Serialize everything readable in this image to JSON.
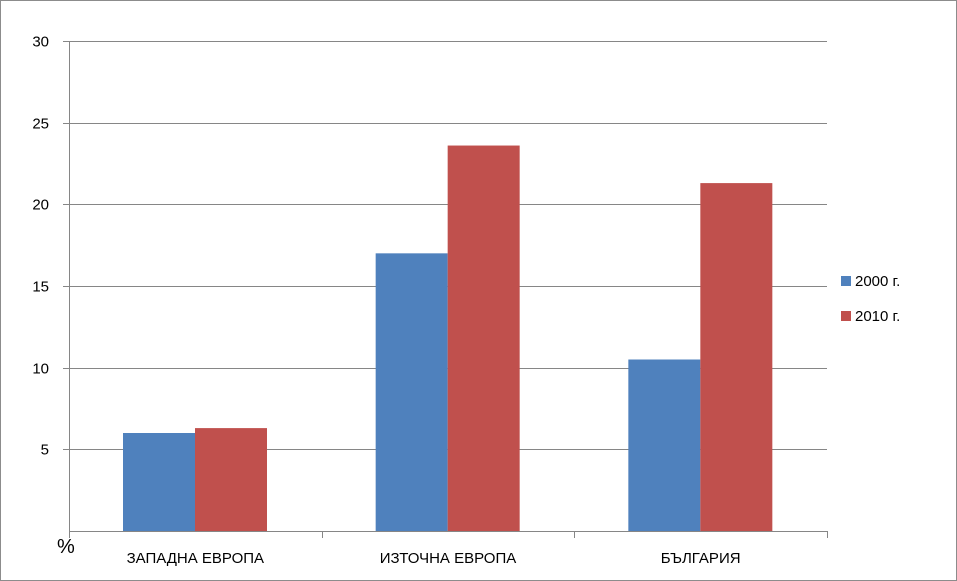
{
  "chart_data": {
    "type": "bar",
    "title": "",
    "xlabel": "",
    "ylabel": "%",
    "categories": [
      "ЗАПАДНА ЕВРОПА",
      "ИЗТОЧНА ЕВРОПА",
      "БЪЛГАРИЯ"
    ],
    "series": [
      {
        "name": "2000 г.",
        "values": [
          6.0,
          17.0,
          10.5
        ],
        "color": "#4F81BD"
      },
      {
        "name": "2010 г.",
        "values": [
          6.3,
          23.6,
          21.3
        ],
        "color": "#C0504D"
      }
    ],
    "ylim": [
      0,
      30
    ],
    "yticks": [
      5,
      10,
      15,
      20,
      25,
      30
    ],
    "grid": true,
    "legend_position": "right"
  }
}
